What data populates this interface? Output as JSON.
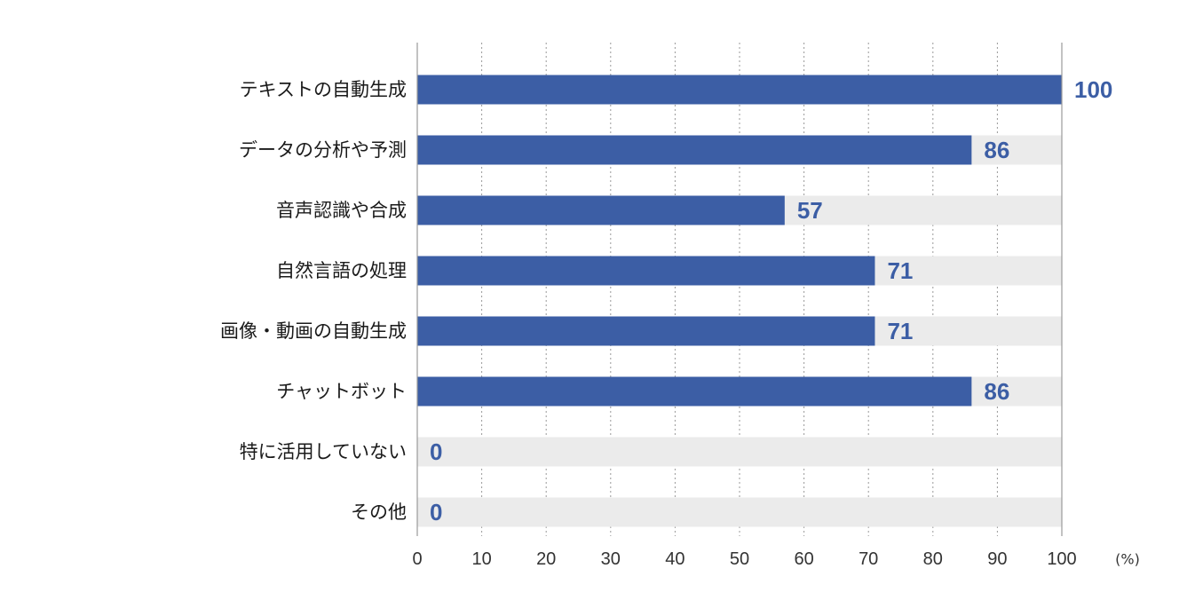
{
  "chart_data": {
    "type": "bar",
    "orientation": "horizontal",
    "categories": [
      "テキストの自動生成",
      "データの分析や予測",
      "音声認識や合成",
      "自然言語の処理",
      "画像・動画の自動生成",
      "チャットボット",
      "特に活用していない",
      "その他"
    ],
    "values": [
      100,
      86,
      57,
      71,
      71,
      86,
      0,
      0
    ],
    "value_labels": [
      "100",
      "86",
      "57",
      "71",
      "71",
      "86",
      "0",
      "0"
    ],
    "xlim": [
      0,
      100
    ],
    "xticks": [
      0,
      10,
      20,
      30,
      40,
      50,
      60,
      70,
      80,
      90,
      100
    ],
    "x_unit": "(%)",
    "grid": "vertical-dotted",
    "colors": {
      "bar": "#3c5ea5",
      "track": "#ebebeb",
      "value_text": "#3c5ea5",
      "grid": "#999999",
      "axis": "#999999"
    }
  }
}
